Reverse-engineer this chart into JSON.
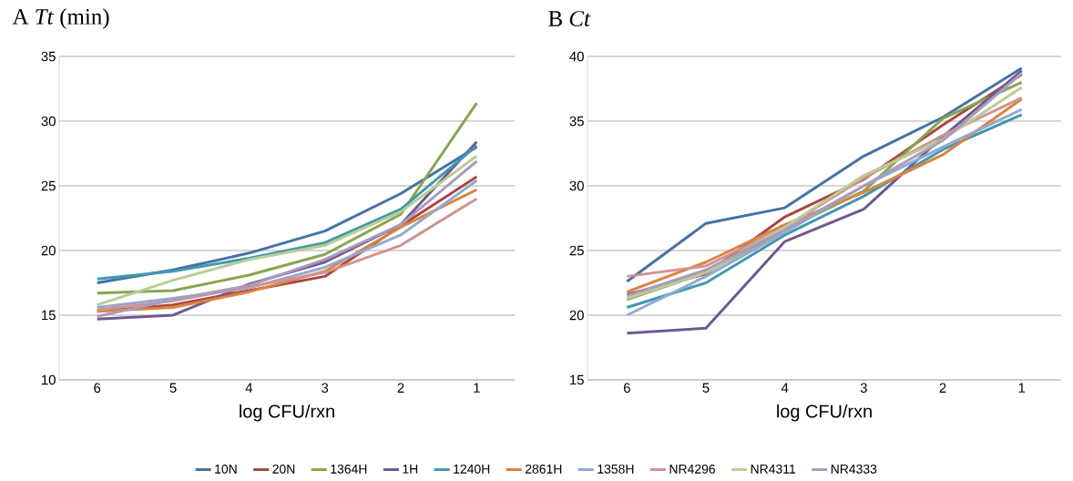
{
  "chart_data": [
    {
      "type": "line",
      "title": "A *Tt* (min)",
      "xlabel": "log CFU/rxn",
      "categories": [
        "6",
        "5",
        "4",
        "3",
        "2",
        "1"
      ],
      "ylim": [
        10,
        35
      ],
      "yticks": [
        10,
        15,
        20,
        25,
        30,
        35
      ],
      "grid": "y",
      "legend": "bottom",
      "series": [
        {
          "name": "10N",
          "color": "#4572a7",
          "values": [
            17.5,
            18.5,
            19.8,
            21.5,
            24.4,
            28.0
          ]
        },
        {
          "name": "20N",
          "color": "#aa4643",
          "values": [
            15.3,
            15.8,
            16.9,
            18.0,
            21.9,
            25.7
          ]
        },
        {
          "name": "1364H",
          "color": "#89a54e",
          "values": [
            16.7,
            16.9,
            18.1,
            19.7,
            22.8,
            31.4
          ]
        },
        {
          "name": "1H",
          "color": "#71588f",
          "values": [
            14.7,
            15.0,
            17.4,
            19.1,
            22.0,
            28.4
          ]
        },
        {
          "name": "1240H",
          "color": "#4198af",
          "values": [
            17.8,
            18.4,
            19.4,
            20.6,
            23.2,
            28.1
          ]
        },
        {
          "name": "2861H",
          "color": "#db843d",
          "values": [
            15.3,
            15.6,
            16.8,
            18.4,
            21.8,
            24.7
          ]
        },
        {
          "name": "1358H",
          "color": "#93a9cf",
          "values": [
            15.6,
            16.3,
            17.1,
            18.7,
            21.2,
            25.4
          ]
        },
        {
          "name": "NR4296",
          "color": "#d19392",
          "values": [
            15.4,
            16.1,
            17.2,
            18.3,
            20.4,
            24.0
          ]
        },
        {
          "name": "NR4311",
          "color": "#b9cd96",
          "values": [
            15.8,
            17.7,
            19.3,
            20.4,
            23.0,
            27.3
          ]
        },
        {
          "name": "NR4333",
          "color": "#a99bbd",
          "values": [
            14.9,
            16.2,
            17.3,
            19.3,
            22.0,
            26.9
          ]
        }
      ]
    },
    {
      "type": "line",
      "title": "B *Ct*",
      "xlabel": "log CFU/rxn",
      "categories": [
        "6",
        "5",
        "4",
        "3",
        "2",
        "1"
      ],
      "ylim": [
        15,
        40
      ],
      "yticks": [
        15,
        20,
        25,
        30,
        35,
        40
      ],
      "grid": "y",
      "series": [
        {
          "color": "#4572a7",
          "values": [
            22.6,
            27.1,
            28.3,
            32.3,
            35.3,
            39.1
          ]
        },
        {
          "color": "#aa4643",
          "values": [
            21.6,
            23.2,
            27.6,
            30.5,
            34.7,
            38.6
          ]
        },
        {
          "color": "#89a54e",
          "values": [
            21.2,
            23.3,
            26.6,
            29.6,
            35.2,
            38.0
          ]
        },
        {
          "color": "#71588f",
          "values": [
            18.6,
            19.0,
            25.7,
            28.2,
            33.8,
            38.9
          ]
        },
        {
          "color": "#4198af",
          "values": [
            20.6,
            22.5,
            26.2,
            29.2,
            32.8,
            35.5
          ]
        },
        {
          "color": "#db843d",
          "values": [
            21.8,
            24.1,
            27.0,
            29.5,
            32.4,
            36.7
          ]
        },
        {
          "color": "#93a9cf",
          "values": [
            20.0,
            23.0,
            26.4,
            30.0,
            33.0,
            35.9
          ]
        },
        {
          "color": "#d19392",
          "values": [
            23.0,
            23.8,
            26.8,
            30.6,
            33.9,
            36.8
          ]
        },
        {
          "color": "#b9cd96",
          "values": [
            21.3,
            23.3,
            26.8,
            30.8,
            33.6,
            37.6
          ]
        },
        {
          "color": "#a99bbd",
          "values": [
            21.5,
            23.5,
            26.6,
            30.0,
            33.5,
            38.7
          ]
        }
      ]
    }
  ]
}
